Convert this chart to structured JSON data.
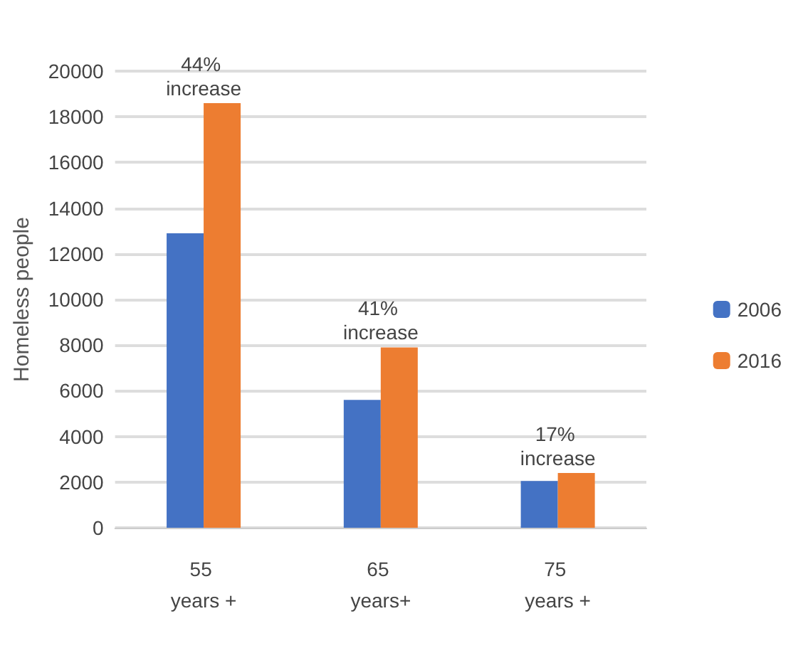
{
  "chart_data": {
    "type": "bar",
    "ylabel": "Homeless people",
    "categories": [
      "55 years +",
      "65 years+",
      "75 years +"
    ],
    "series": [
      {
        "name": "2006",
        "color": "#4472c4",
        "values": [
          12900,
          5600,
          2050
        ]
      },
      {
        "name": "2016",
        "color": "#ed7d31",
        "values": [
          18600,
          7900,
          2400
        ]
      }
    ],
    "ylim": [
      0,
      20000
    ],
    "yticks": [
      0,
      2000,
      4000,
      6000,
      8000,
      10000,
      12000,
      14000,
      16000,
      18000,
      20000
    ],
    "grid": "y",
    "legend": "right",
    "annotations": [
      {
        "text": "44% increase",
        "x": "55 years +",
        "y": 18600
      },
      {
        "text": "41% increase",
        "x": "65 years+",
        "y": 7900
      },
      {
        "text": "17% increase",
        "x": "75 years +",
        "y": 2400
      }
    ]
  }
}
